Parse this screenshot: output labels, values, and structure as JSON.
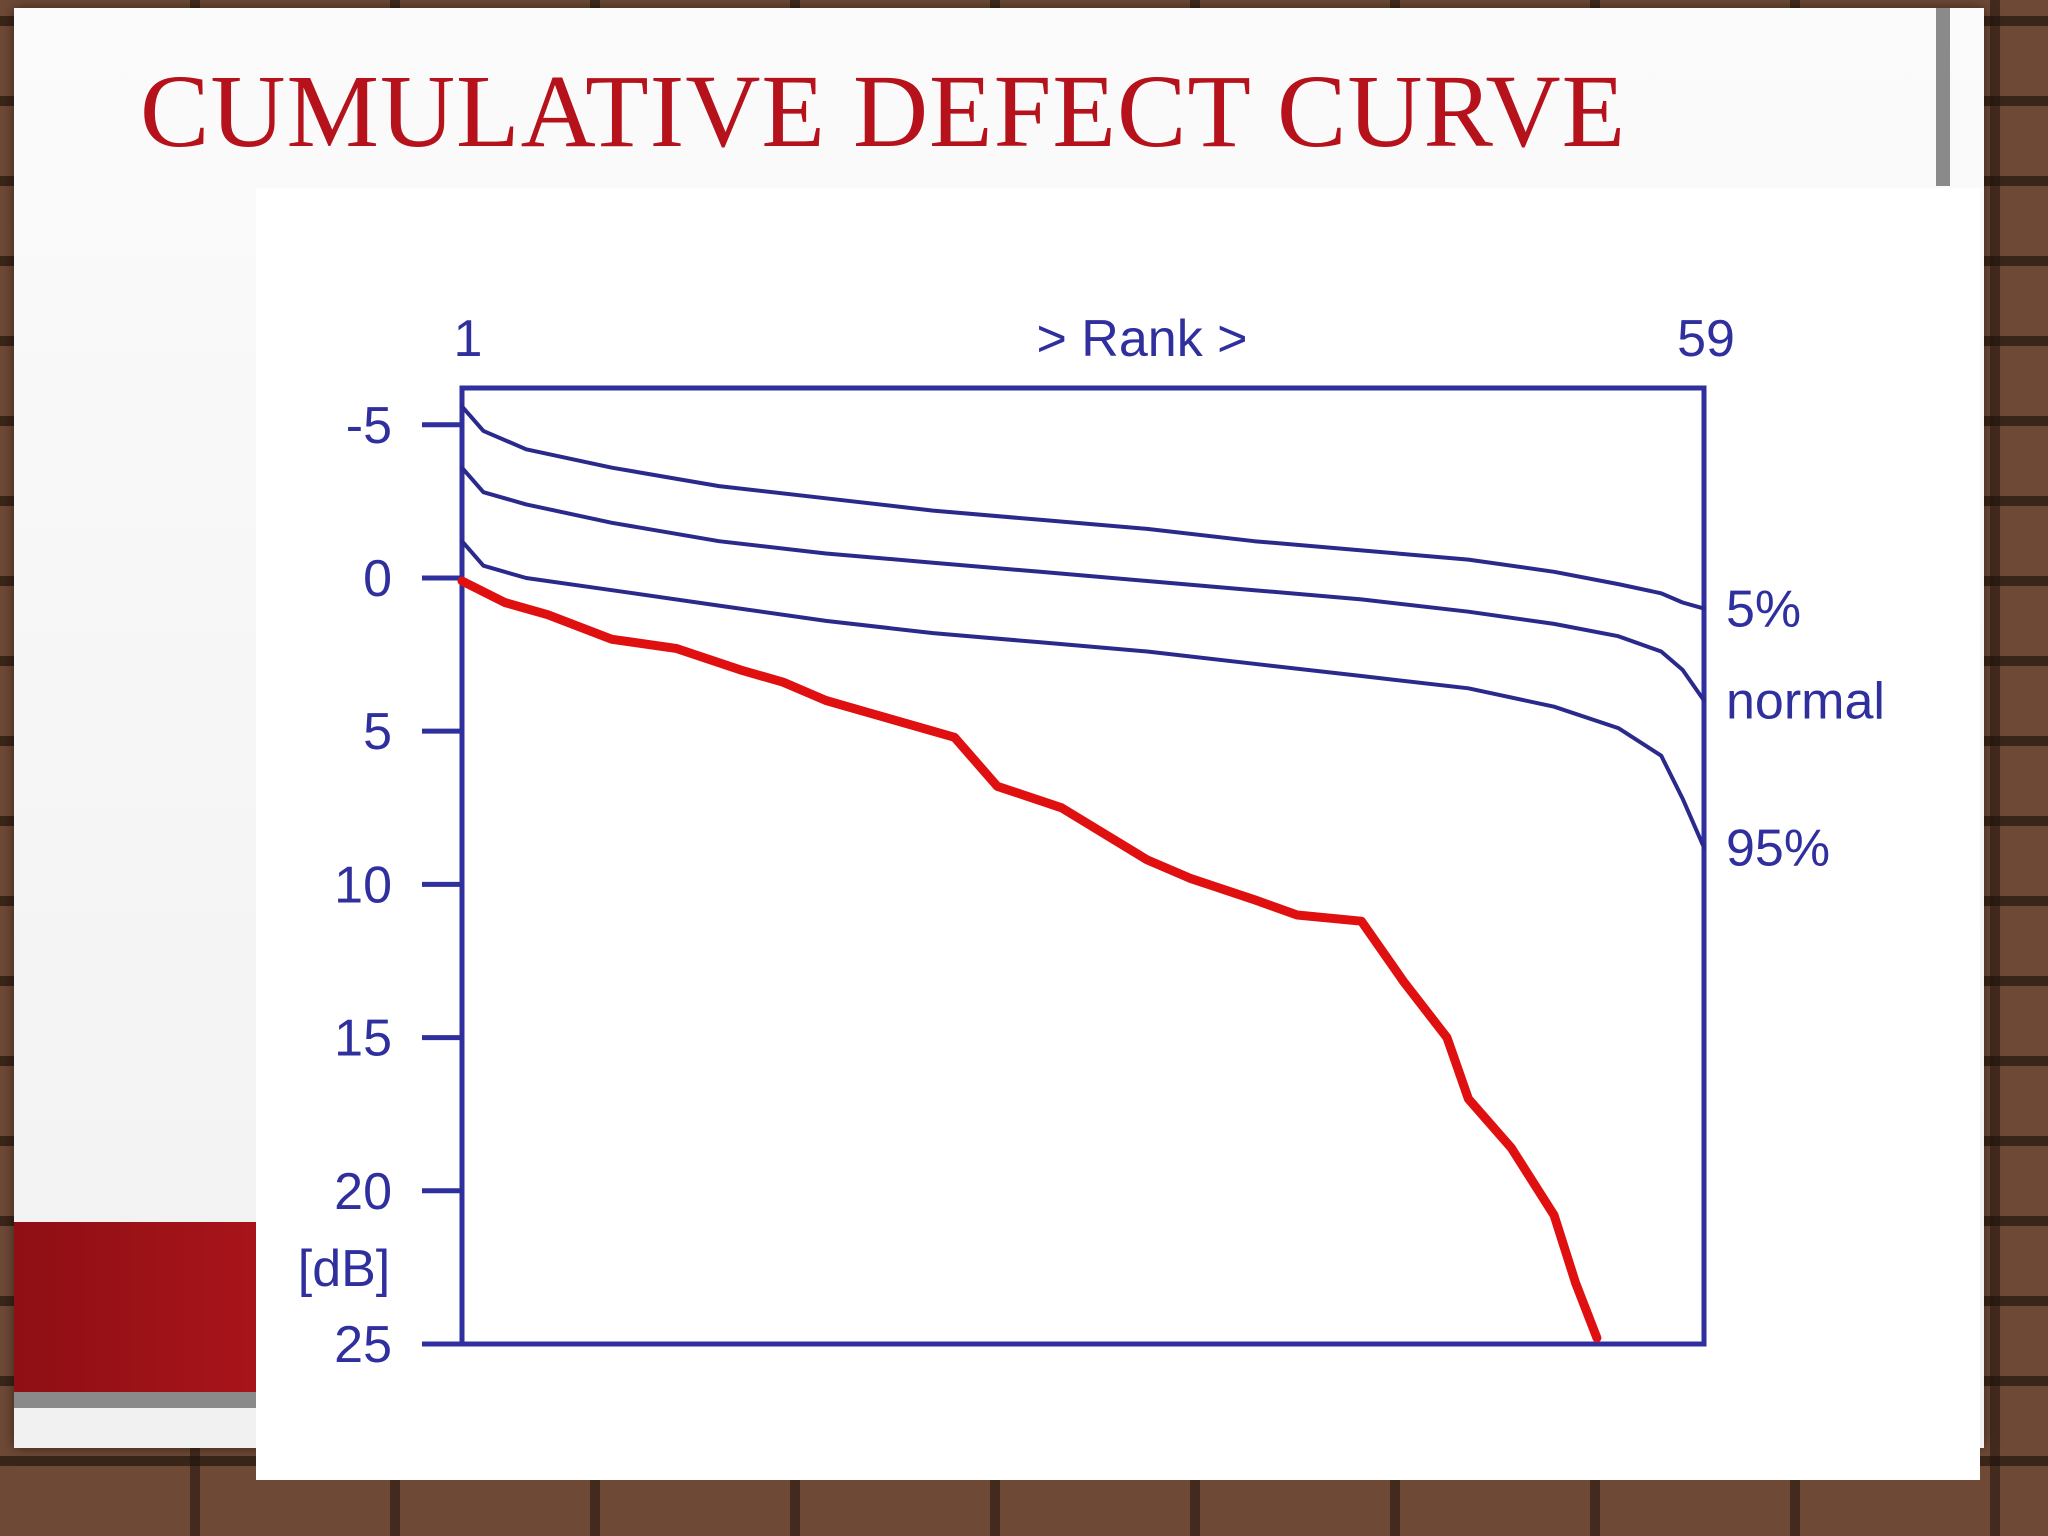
{
  "slide": {
    "title": "CUMULATIVE DEFECT CURVE"
  },
  "chart_data": {
    "type": "line",
    "x_axis": {
      "start_label": "1",
      "end_label": "59",
      "title": "> Rank >",
      "range": [
        1,
        59
      ],
      "position": "top"
    },
    "y_axis": {
      "unit_label": "[dB]",
      "ticks": [
        "-5",
        "0",
        "5",
        "10",
        "15",
        "20",
        "25"
      ],
      "tick_values": [
        -5,
        0,
        5,
        10,
        15,
        20,
        25
      ],
      "range": [
        -6.2,
        25
      ],
      "inverted": true
    },
    "grid": false,
    "reference_curves": [
      {
        "name": "5%",
        "color": "#2a2a8c",
        "points": [
          [
            1,
            -5.6
          ],
          [
            2,
            -4.8
          ],
          [
            4,
            -4.2
          ],
          [
            8,
            -3.6
          ],
          [
            13,
            -3.0
          ],
          [
            18,
            -2.6
          ],
          [
            23,
            -2.2
          ],
          [
            28,
            -1.9
          ],
          [
            33,
            -1.6
          ],
          [
            38,
            -1.2
          ],
          [
            43,
            -0.9
          ],
          [
            48,
            -0.6
          ],
          [
            52,
            -0.2
          ],
          [
            55,
            0.2
          ],
          [
            57,
            0.5
          ],
          [
            58,
            0.8
          ],
          [
            59,
            1.0
          ]
        ]
      },
      {
        "name": "normal",
        "color": "#2a2a8c",
        "points": [
          [
            1,
            -3.6
          ],
          [
            2,
            -2.8
          ],
          [
            4,
            -2.4
          ],
          [
            8,
            -1.8
          ],
          [
            13,
            -1.2
          ],
          [
            18,
            -0.8
          ],
          [
            23,
            -0.5
          ],
          [
            28,
            -0.2
          ],
          [
            33,
            0.1
          ],
          [
            38,
            0.4
          ],
          [
            43,
            0.7
          ],
          [
            48,
            1.1
          ],
          [
            52,
            1.5
          ],
          [
            55,
            1.9
          ],
          [
            57,
            2.4
          ],
          [
            58,
            3.0
          ],
          [
            59,
            4.0
          ]
        ]
      },
      {
        "name": "95%",
        "color": "#2a2a8c",
        "points": [
          [
            1,
            -1.2
          ],
          [
            2,
            -0.4
          ],
          [
            4,
            0.0
          ],
          [
            8,
            0.4
          ],
          [
            13,
            0.9
          ],
          [
            18,
            1.4
          ],
          [
            23,
            1.8
          ],
          [
            28,
            2.1
          ],
          [
            33,
            2.4
          ],
          [
            38,
            2.8
          ],
          [
            43,
            3.2
          ],
          [
            48,
            3.6
          ],
          [
            52,
            4.2
          ],
          [
            55,
            4.9
          ],
          [
            57,
            5.8
          ],
          [
            58,
            7.2
          ],
          [
            59,
            8.8
          ]
        ]
      }
    ],
    "patient_curve": {
      "color": "#e01010",
      "points": [
        [
          1,
          0.1
        ],
        [
          3,
          0.8
        ],
        [
          5,
          1.2
        ],
        [
          8,
          2.0
        ],
        [
          11,
          2.3
        ],
        [
          14,
          3.0
        ],
        [
          16,
          3.4
        ],
        [
          18,
          4.0
        ],
        [
          20,
          4.4
        ],
        [
          24,
          5.2
        ],
        [
          26,
          6.8
        ],
        [
          29,
          7.5
        ],
        [
          33,
          9.2
        ],
        [
          35,
          9.8
        ],
        [
          38,
          10.5
        ],
        [
          40,
          11.0
        ],
        [
          43,
          11.2
        ],
        [
          45,
          13.2
        ],
        [
          47,
          15.0
        ],
        [
          48,
          17.0
        ],
        [
          50,
          18.6
        ],
        [
          52,
          20.8
        ],
        [
          53,
          23.0
        ],
        [
          54,
          24.8
        ]
      ]
    }
  }
}
